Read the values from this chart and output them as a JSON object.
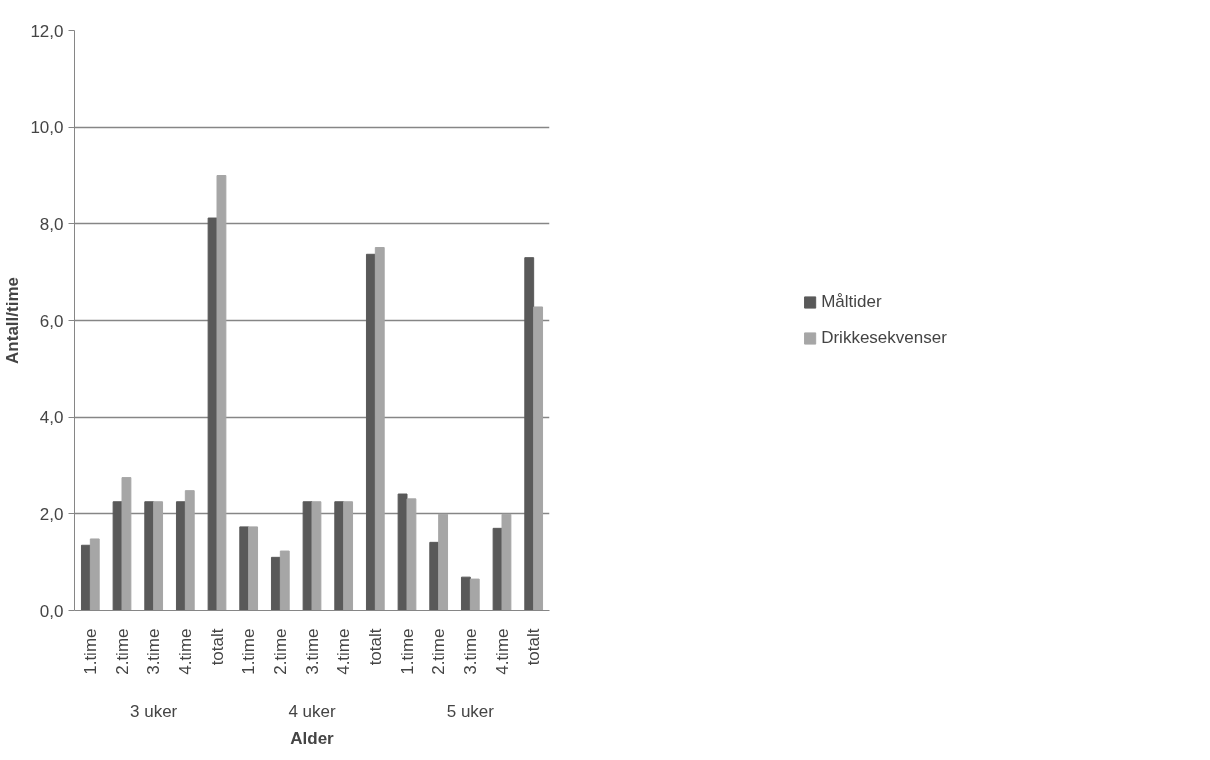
{
  "chart_data": {
    "type": "bar",
    "xlabel": "Alder",
    "ylabel": "Antall/time",
    "categories": [
      "1.time",
      "2.time",
      "3.time",
      "4.time",
      "totalt",
      "1.time",
      "2.time",
      "3.time",
      "4.time",
      "totalt",
      "1.time",
      "2.time",
      "3.time",
      "4.time",
      "totalt"
    ],
    "annotations": [
      "3 uker",
      "4 uker",
      "5 uker"
    ],
    "series": [
      {
        "name": "Måltider",
        "color": "#595959",
        "values": [
          1.35,
          2.25,
          2.25,
          2.25,
          8.12,
          1.73,
          1.1,
          2.25,
          2.25,
          7.37,
          2.41,
          1.41,
          0.69,
          1.7,
          7.3
        ]
      },
      {
        "name": "Drikkesekvenser",
        "color": "#a6a6a6",
        "values": [
          1.48,
          2.75,
          2.25,
          2.48,
          9.0,
          1.73,
          1.23,
          2.25,
          2.25,
          7.51,
          2.31,
          1.99,
          0.65,
          1.99,
          6.28
        ]
      }
    ],
    "ylim": [
      0,
      12
    ],
    "yticks": [
      {
        "value": 0,
        "label": "0,0"
      },
      {
        "value": 2,
        "label": "2,0"
      },
      {
        "value": 4,
        "label": "4,0"
      },
      {
        "value": 6,
        "label": "6,0"
      },
      {
        "value": 8,
        "label": "8,0"
      },
      {
        "value": 10,
        "label": "10,0"
      },
      {
        "value": 12,
        "label": "12,0"
      }
    ],
    "grid": "y",
    "legend": "right"
  }
}
